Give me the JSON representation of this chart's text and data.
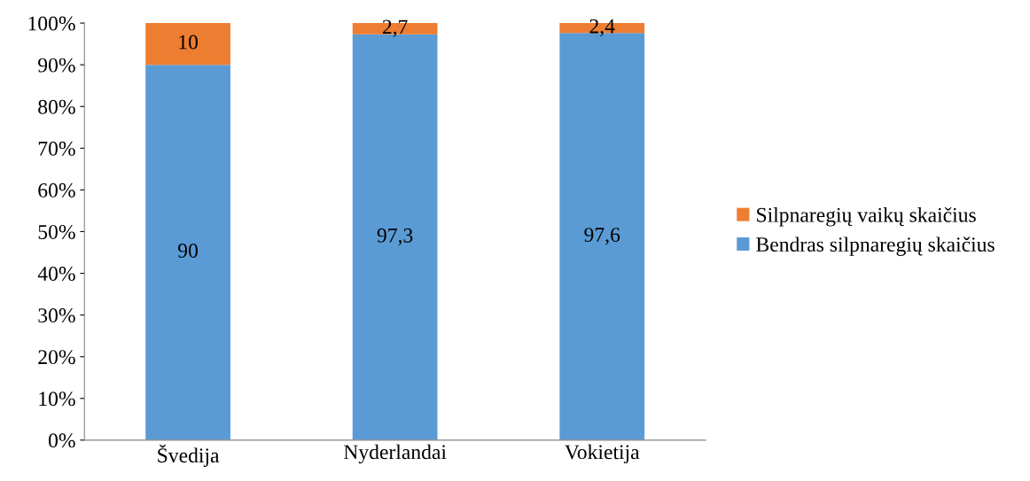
{
  "chart_data": {
    "type": "bar",
    "stacked": true,
    "categories": [
      "Švedija",
      "Nyderlandai",
      "Vokietija"
    ],
    "series": [
      {
        "name": "Bendras silpnaregių skaičius",
        "color": "#5b9bd5",
        "values": [
          90,
          97.3,
          97.6
        ],
        "value_labels": [
          "90",
          "97,3",
          "97,6"
        ]
      },
      {
        "name": "Silpnaregių vaikų skaičius",
        "color": "#ed7d31",
        "values": [
          10,
          2.7,
          2.4
        ],
        "value_labels": [
          "10",
          "2,7",
          "2,4"
        ]
      }
    ],
    "ylim": [
      0,
      100
    ],
    "yticks": [
      {
        "value": 0,
        "label": "0%"
      },
      {
        "value": 10,
        "label": "10%"
      },
      {
        "value": 20,
        "label": "20%"
      },
      {
        "value": 30,
        "label": "30%"
      },
      {
        "value": 40,
        "label": "40%"
      },
      {
        "value": 50,
        "label": "50%"
      },
      {
        "value": 60,
        "label": "60%"
      },
      {
        "value": 70,
        "label": "70%"
      },
      {
        "value": 80,
        "label": "80%"
      },
      {
        "value": 90,
        "label": "90%"
      },
      {
        "value": 100,
        "label": "100%"
      }
    ],
    "grid": false,
    "legend": "right"
  }
}
